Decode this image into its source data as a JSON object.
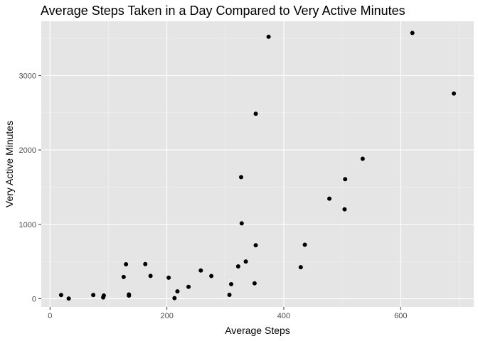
{
  "chart_data": {
    "type": "scatter",
    "title": "Average Steps Taken in a Day Compared to Very Active Minutes",
    "xlabel": "Average Steps",
    "ylabel": "Very Active Minutes",
    "xlim": [
      -15,
      725
    ],
    "ylim": [
      -110,
      3730
    ],
    "x_ticks": [
      0,
      200,
      400,
      600
    ],
    "y_ticks": [
      0,
      1000,
      2000,
      3000
    ],
    "x_minor": [
      100,
      300,
      500,
      700
    ],
    "y_minor": [
      500,
      1500,
      2500,
      3500
    ],
    "grid": true,
    "background": "#e5e5e5",
    "point_color": "#000000",
    "points": [
      {
        "x": 19,
        "y": 50
      },
      {
        "x": 32,
        "y": 2
      },
      {
        "x": 74,
        "y": 50
      },
      {
        "x": 91,
        "y": 18
      },
      {
        "x": 92,
        "y": 43
      },
      {
        "x": 126,
        "y": 292
      },
      {
        "x": 130,
        "y": 463
      },
      {
        "x": 135,
        "y": 57
      },
      {
        "x": 135,
        "y": 42
      },
      {
        "x": 163,
        "y": 466
      },
      {
        "x": 172,
        "y": 307
      },
      {
        "x": 203,
        "y": 283
      },
      {
        "x": 213,
        "y": 8
      },
      {
        "x": 218,
        "y": 99
      },
      {
        "x": 237,
        "y": 160
      },
      {
        "x": 258,
        "y": 379
      },
      {
        "x": 276,
        "y": 305
      },
      {
        "x": 307,
        "y": 52
      },
      {
        "x": 310,
        "y": 196
      },
      {
        "x": 322,
        "y": 435
      },
      {
        "x": 327,
        "y": 1634
      },
      {
        "x": 328,
        "y": 1013
      },
      {
        "x": 335,
        "y": 500
      },
      {
        "x": 350,
        "y": 207
      },
      {
        "x": 352,
        "y": 2487
      },
      {
        "x": 352,
        "y": 719
      },
      {
        "x": 374,
        "y": 3522
      },
      {
        "x": 429,
        "y": 424
      },
      {
        "x": 436,
        "y": 726
      },
      {
        "x": 478,
        "y": 1346
      },
      {
        "x": 504,
        "y": 1202
      },
      {
        "x": 505,
        "y": 1607
      },
      {
        "x": 535,
        "y": 1882
      },
      {
        "x": 620,
        "y": 3573
      },
      {
        "x": 691,
        "y": 2759
      }
    ]
  }
}
